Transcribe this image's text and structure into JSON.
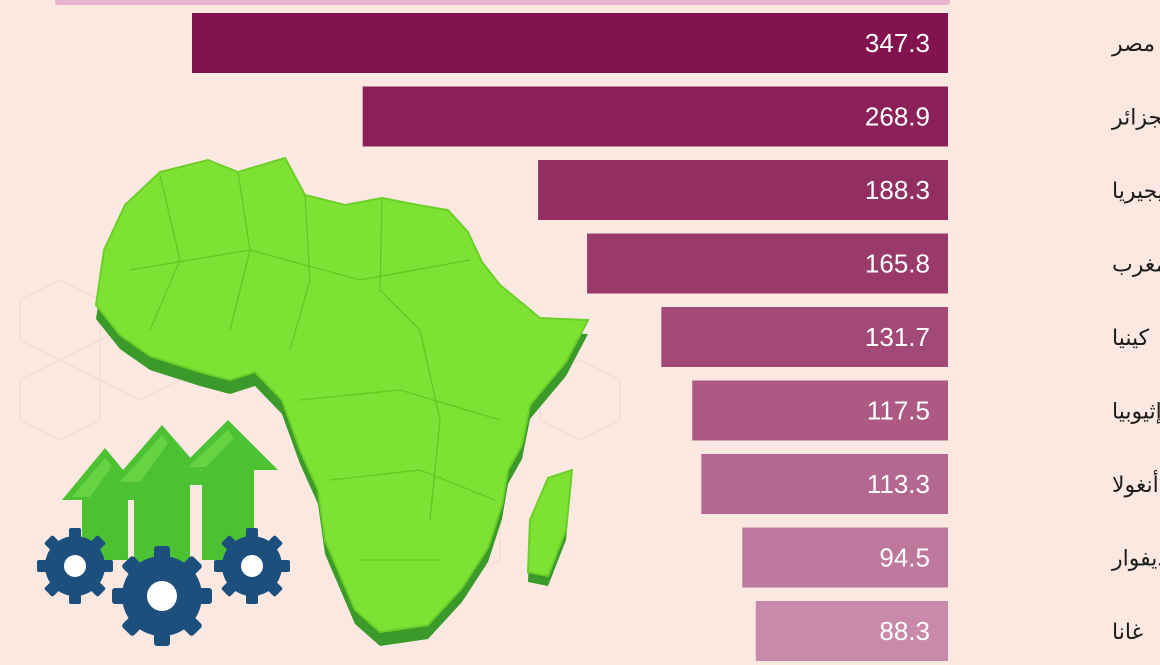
{
  "chart_data": {
    "type": "bar",
    "orientation": "horizontal",
    "categories": [
      "مصر",
      "الجزائر",
      "نيجيريا",
      "المغرب",
      "كينيا",
      "إثيوبيا",
      "أنغولا",
      "كوت ديفوار",
      "غانا"
    ],
    "values": [
      347.3,
      268.9,
      188.3,
      165.8,
      131.7,
      117.5,
      113.3,
      94.5,
      88.3
    ],
    "bar_colors": [
      "#82134e",
      "#8b2158",
      "#932e62",
      "#9a3a6b",
      "#a34977",
      "#ad5983",
      "#b46790",
      "#bf789d",
      "#c889ab"
    ],
    "label_color": "#ffffff",
    "grid": false,
    "legend": "none"
  },
  "illustration": {
    "map_icon": "africa-map-icon",
    "growth_icon": "growth-arrows-gears-icon",
    "map_color": "#7ee234",
    "arrow_color": "#5fd13a",
    "gear_color": "#1c4f7c"
  }
}
